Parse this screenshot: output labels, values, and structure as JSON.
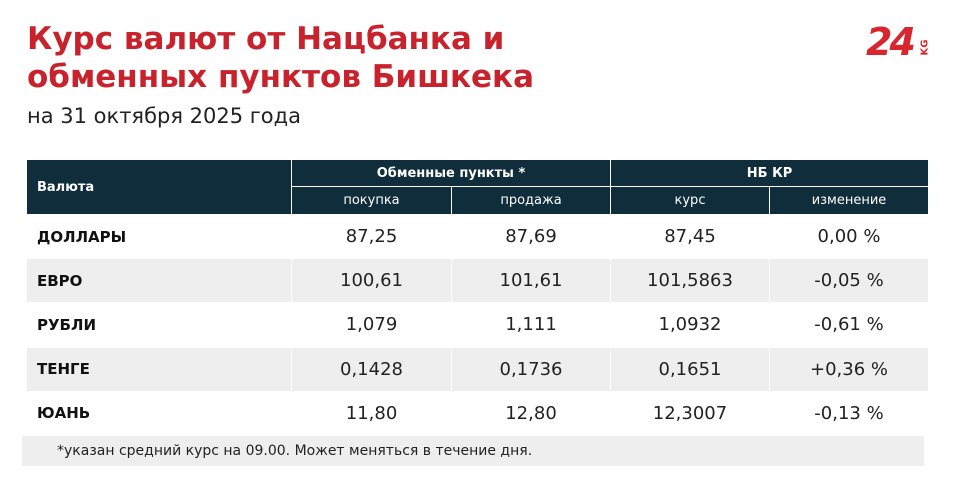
{
  "header": {
    "title_lines": [
      "Курс валют от Нацбанка и",
      "обменных пунктов Бишкека"
    ],
    "subtitle": "на 31 октября 2025 года",
    "logo": {
      "number": "24",
      "suffix": "KG"
    }
  },
  "table": {
    "first_header": "Валюта",
    "groups": [
      "Обменные пункты *",
      "НБ КР"
    ],
    "columns": [
      "покупка",
      "продажа",
      "курс",
      "изменение"
    ],
    "rows": [
      [
        "ДОЛЛАРЫ",
        "87,25",
        "87,69",
        "87,45",
        "0,00 %"
      ],
      [
        "ЕВРО",
        "100,61",
        "101,61",
        "101,5863",
        "-0,05 %"
      ],
      [
        "РУБЛИ",
        "1,079",
        "1,111",
        "1,0932",
        "-0,61 %"
      ],
      [
        "ТЕНГЕ",
        "0,1428",
        "0,1736",
        "0,1651",
        "+0,36 %"
      ],
      [
        "ЮАНЬ",
        "11,80",
        "12,80",
        "12,3007",
        "-0,13 %"
      ]
    ]
  },
  "footnote": "*указан средний курс на 09.00. Может меняться в течение дня."
}
